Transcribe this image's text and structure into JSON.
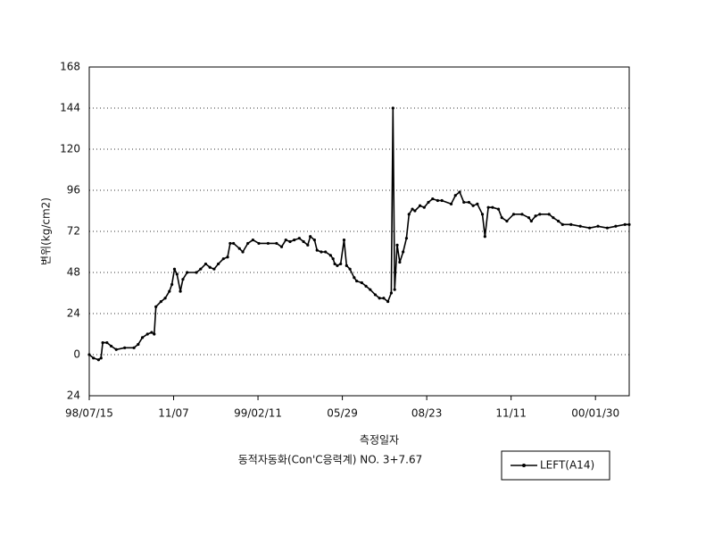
{
  "chart_data": {
    "type": "line",
    "y_label": "변위(kg/cm2)",
    "x_label": "측정일자",
    "subtitle": "동적자동화(Con'C응력계) NO. 3+7.67",
    "grid": true,
    "ylim": [
      -24,
      168
    ],
    "yticks": [
      {
        "value": -24,
        "label": "24"
      },
      0,
      24,
      48,
      72,
      96,
      120,
      144,
      168
    ],
    "xlim": [
      0,
      6.4
    ],
    "xticks": [
      {
        "value": 0,
        "label": "98/07/15"
      },
      {
        "value": 1,
        "label": "11/07"
      },
      {
        "value": 2,
        "label": "99/02/11"
      },
      {
        "value": 3,
        "label": "05/29"
      },
      {
        "value": 4,
        "label": "08/23"
      },
      {
        "value": 5,
        "label": "11/11"
      },
      {
        "value": 6,
        "label": "00/01/30"
      }
    ],
    "legend": "bottom-right",
    "series": [
      {
        "name": "LEFT(A14)",
        "color": "#000000",
        "x": [
          0,
          0.05,
          0.11,
          0.14,
          0.16,
          0.21,
          0.26,
          0.32,
          0.42,
          0.53,
          0.58,
          0.63,
          0.69,
          0.74,
          0.77,
          0.79,
          0.85,
          0.9,
          0.95,
          0.98,
          1.01,
          1.04,
          1.08,
          1.11,
          1.16,
          1.27,
          1.32,
          1.38,
          1.43,
          1.48,
          1.53,
          1.59,
          1.64,
          1.67,
          1.71,
          1.78,
          1.82,
          1.88,
          1.94,
          2.01,
          2.12,
          2.22,
          2.28,
          2.33,
          2.38,
          2.43,
          2.49,
          2.54,
          2.59,
          2.62,
          2.67,
          2.7,
          2.75,
          2.8,
          2.86,
          2.89,
          2.91,
          2.94,
          2.98,
          3.02,
          3.05,
          3.09,
          3.14,
          3.17,
          3.23,
          3.28,
          3.33,
          3.39,
          3.44,
          3.49,
          3.54,
          3.58,
          3.6,
          3.62,
          3.65,
          3.68,
          3.72,
          3.76,
          3.79,
          3.83,
          3.86,
          3.92,
          3.97,
          4.02,
          4.07,
          4.13,
          4.18,
          4.29,
          4.34,
          4.39,
          4.44,
          4.5,
          4.55,
          4.6,
          4.66,
          4.69,
          4.73,
          4.78,
          4.85,
          4.89,
          4.95,
          5.03,
          5.13,
          5.21,
          5.24,
          5.29,
          5.34,
          5.45,
          5.5,
          5.56,
          5.61,
          5.71,
          5.82,
          5.93,
          6.03,
          6.14,
          6.24,
          6.35,
          6.4
        ],
        "values": [
          0,
          -2,
          -3,
          -2,
          7,
          7,
          5,
          3,
          4,
          4,
          6,
          10,
          12,
          13,
          12,
          28,
          31,
          33,
          37,
          41,
          50,
          47,
          37,
          44,
          48,
          48,
          50,
          53,
          51,
          50,
          53,
          56,
          57,
          65,
          65,
          62,
          60,
          65,
          67,
          65,
          65,
          65,
          63,
          67,
          66,
          67,
          68,
          66,
          64,
          69,
          67,
          61,
          60,
          60,
          58,
          56,
          53,
          52,
          53,
          67,
          52,
          50,
          45,
          43,
          42,
          40,
          38,
          35,
          33,
          33,
          31,
          36,
          144,
          38,
          64,
          54,
          60,
          68,
          82,
          85,
          84,
          87,
          86,
          89,
          91,
          90,
          90,
          88,
          93,
          95,
          89,
          89,
          87,
          88,
          82,
          69,
          86,
          86,
          85,
          80,
          78,
          82,
          82,
          80,
          78,
          81,
          82,
          82,
          80,
          78,
          76,
          76,
          75,
          74,
          75,
          74,
          75,
          76,
          76
        ]
      }
    ]
  }
}
